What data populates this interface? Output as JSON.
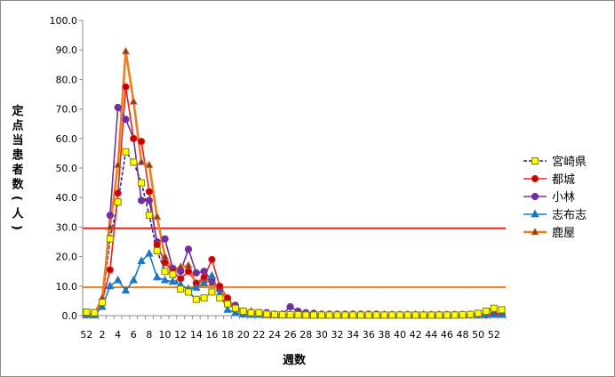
{
  "chart_data": {
    "type": "line",
    "title": "",
    "xlabel": "週数",
    "ylabel": "定点当患者数(人)",
    "ylim": [
      0,
      100
    ],
    "yticks": [
      "0.0",
      "10.0",
      "20.0",
      "30.0",
      "40.0",
      "50.0",
      "60.0",
      "70.0",
      "80.0",
      "90.0",
      "100.0"
    ],
    "x": [
      52,
      1,
      2,
      3,
      4,
      5,
      6,
      7,
      8,
      9,
      10,
      11,
      12,
      13,
      14,
      15,
      16,
      17,
      18,
      19,
      20,
      21,
      22,
      23,
      24,
      25,
      26,
      27,
      28,
      29,
      30,
      31,
      32,
      33,
      34,
      35,
      36,
      37,
      38,
      39,
      40,
      41,
      42,
      43,
      44,
      45,
      46,
      47,
      48,
      49,
      50,
      51,
      52,
      53
    ],
    "xtick_labels": [
      "52",
      "2",
      "4",
      "6",
      "8",
      "10",
      "12",
      "14",
      "16",
      "18",
      "20",
      "22",
      "24",
      "26",
      "28",
      "30",
      "32",
      "34",
      "36",
      "38",
      "40",
      "42",
      "44",
      "46",
      "48",
      "50",
      "52"
    ],
    "legend_position": "right",
    "grid": false,
    "series": [
      {
        "name": "宮崎県",
        "color": "#1f2f8c",
        "marker": "square",
        "marker_fill": "#ffff00",
        "dash": true,
        "values": [
          1.2,
          1.0,
          4.5,
          26.0,
          38.5,
          55.5,
          52.0,
          45.0,
          34.0,
          22.0,
          15.0,
          14.0,
          9.0,
          8.0,
          5.5,
          6.0,
          8.0,
          6.0,
          4.0,
          2.5,
          1.5,
          1.0,
          1.0,
          0.5,
          0.4,
          0.3,
          0.3,
          0.3,
          0.2,
          0.2,
          0.2,
          0.2,
          0.2,
          0.2,
          0.2,
          0.2,
          0.2,
          0.2,
          0.2,
          0.2,
          0.2,
          0.2,
          0.2,
          0.2,
          0.2,
          0.2,
          0.2,
          0.2,
          0.3,
          0.4,
          0.8,
          1.5,
          2.5,
          2.0
        ]
      },
      {
        "name": "都城",
        "color": "#e8201c",
        "marker": "circle",
        "marker_fill": "#c00000",
        "dash": false,
        "values": [
          0.5,
          0.3,
          5.0,
          15.5,
          41.5,
          77.5,
          60.0,
          59.0,
          42.0,
          24.0,
          18.0,
          15.0,
          12.5,
          15.0,
          11.0,
          13.0,
          19.0,
          10.0,
          6.0,
          2.5,
          0.5,
          0.5,
          0.5,
          0.3,
          0.2,
          0.2,
          0.2,
          0.2,
          0.2,
          0.2,
          0.2,
          0.2,
          0.2,
          0.2,
          0.2,
          0.2,
          0.2,
          0.2,
          0.2,
          0.2,
          0.2,
          0.2,
          0.2,
          0.2,
          0.2,
          0.2,
          0.2,
          0.2,
          0.2,
          0.2,
          0.2,
          0.2,
          0.5,
          0.5
        ]
      },
      {
        "name": "小林",
        "color": "#7030a0",
        "marker": "circle",
        "marker_fill": "#7030a0",
        "dash": false,
        "values": [
          0.3,
          1.0,
          5.0,
          34.0,
          70.5,
          66.5,
          60.0,
          39.0,
          39.0,
          25.0,
          26.0,
          16.0,
          15.0,
          22.5,
          14.5,
          15.0,
          12.0,
          9.0,
          5.0,
          3.5,
          1.5,
          1.0,
          1.0,
          1.0,
          0.5,
          0.5,
          3.0,
          1.5,
          1.0,
          0.8,
          0.5,
          0.5,
          0.5,
          0.5,
          0.5,
          0.5,
          0.5,
          0.5,
          0.3,
          0.3,
          0.3,
          0.3,
          0.3,
          0.3,
          0.3,
          0.3,
          0.3,
          0.3,
          0.3,
          0.3,
          0.5,
          0.5,
          0.5,
          0.5
        ]
      },
      {
        "name": "志布志",
        "color": "#1b78c4",
        "marker": "triangle",
        "marker_fill": "#1b78c4",
        "dash": false,
        "values": [
          0.2,
          0.2,
          3.0,
          10.0,
          12.0,
          8.5,
          12.0,
          18.5,
          21.0,
          13.0,
          12.0,
          11.5,
          10.5,
          9.0,
          9.5,
          11.0,
          13.5,
          7.5,
          2.0,
          1.0,
          0.5,
          0.3,
          0.3,
          0.2,
          0.2,
          0.2,
          0.2,
          0.2,
          0.2,
          0.2,
          0.2,
          0.2,
          0.2,
          0.2,
          0.2,
          0.2,
          0.2,
          0.2,
          0.2,
          0.2,
          0.2,
          0.2,
          0.2,
          0.2,
          0.2,
          0.2,
          0.2,
          0.2,
          0.2,
          0.2,
          0.2,
          0.3,
          0.3,
          0.3
        ]
      },
      {
        "name": "鹿屋",
        "color": "#f07d1c",
        "marker": "triangle",
        "marker_fill": "#7b3f3f",
        "dash": false,
        "thick": true,
        "values": [
          0.5,
          0.5,
          6.0,
          30.0,
          51.0,
          89.5,
          72.5,
          52.0,
          51.0,
          33.5,
          20.0,
          15.5,
          16.5,
          17.0,
          10.5,
          12.0,
          11.0,
          9.0,
          5.5,
          2.5,
          1.5,
          1.5,
          1.0,
          0.5,
          0.3,
          0.3,
          0.3,
          0.3,
          0.3,
          0.3,
          0.3,
          0.3,
          0.3,
          0.3,
          0.3,
          0.3,
          0.3,
          0.3,
          0.3,
          0.3,
          0.3,
          0.3,
          0.3,
          0.3,
          0.3,
          0.3,
          0.3,
          0.3,
          0.3,
          0.3,
          0.3,
          0.3,
          0.5,
          0.5
        ]
      }
    ],
    "threshold_lines": [
      {
        "value": 29.6,
        "color": "#e8201c"
      },
      {
        "value": 9.6,
        "color": "#f07d1c"
      }
    ]
  }
}
